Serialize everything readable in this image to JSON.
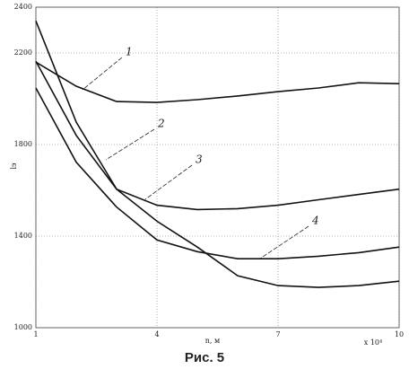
{
  "chart_data": {
    "type": "line",
    "x_label": "n, м",
    "x_multiplier": "x 10⁴",
    "y_label": "lэ",
    "caption": "Рис. 5",
    "x": [
      1,
      2,
      3,
      4,
      5,
      6,
      7,
      8,
      9,
      10
    ],
    "series": [
      {
        "name": "1",
        "color": "#111111",
        "values": [
          2160,
          2055,
          1988,
          1984,
          1996,
          2012,
          2031,
          2047,
          2070,
          2066
        ]
      },
      {
        "name": "2",
        "color": "#111111",
        "values": [
          2340,
          1898,
          1605,
          1465,
          1352,
          1227,
          1184,
          1176,
          1184,
          1203
        ]
      },
      {
        "name": "3",
        "color": "#111111",
        "values": [
          2164,
          1840,
          1605,
          1535,
          1516,
          1520,
          1535,
          1559,
          1582,
          1605
        ]
      },
      {
        "name": "4",
        "color": "#111111",
        "values": [
          2047,
          1723,
          1527,
          1383,
          1332,
          1301,
          1301,
          1312,
          1328,
          1352
        ]
      }
    ],
    "xlim": [
      1,
      10
    ],
    "xticks": [
      1,
      4,
      7,
      10
    ],
    "ylim": [
      1000,
      2400
    ],
    "yticks": [
      1000,
      1400,
      1800,
      2200,
      2400
    ],
    "grid": true
  }
}
